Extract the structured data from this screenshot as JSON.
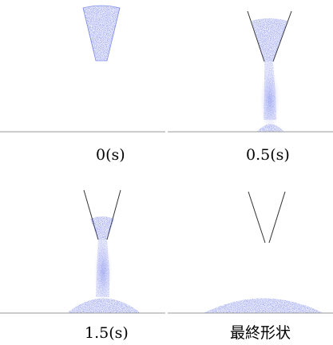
{
  "panels": [
    {
      "id": "t0",
      "caption": "0(s)"
    },
    {
      "id": "t05",
      "caption": "0.5(s)"
    },
    {
      "id": "t15",
      "caption": "1.5(s)"
    },
    {
      "id": "final",
      "caption": "最終形状"
    }
  ],
  "colors": {
    "particles": "#4f5fe3",
    "particles_light": "#8f98ee",
    "funnel_wall": "#333333",
    "floor_line": "#9a9a9a"
  }
}
